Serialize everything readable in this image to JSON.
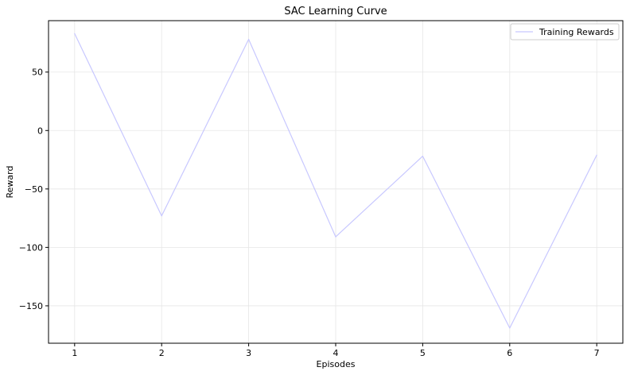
{
  "chart_data": {
    "type": "line",
    "title": "SAC Learning Curve",
    "xlabel": "Episodes",
    "ylabel": "Reward",
    "x": [
      1,
      2,
      3,
      4,
      5,
      6,
      7
    ],
    "series": [
      {
        "name": "Training Rewards",
        "values": [
          83,
          -73,
          78,
          -91,
          -22,
          -169,
          -21
        ],
        "color": "#c8c8ff"
      }
    ],
    "xlim": [
      0.7,
      7.3
    ],
    "ylim": [
      -182,
      94
    ],
    "xticks": [
      1,
      2,
      3,
      4,
      5,
      6,
      7
    ],
    "yticks": [
      -150,
      -100,
      -50,
      0,
      50
    ],
    "ytick_labels": [
      "−150",
      "−100",
      "−50",
      "0",
      "50"
    ],
    "grid": true,
    "legend_position": "top-right"
  }
}
